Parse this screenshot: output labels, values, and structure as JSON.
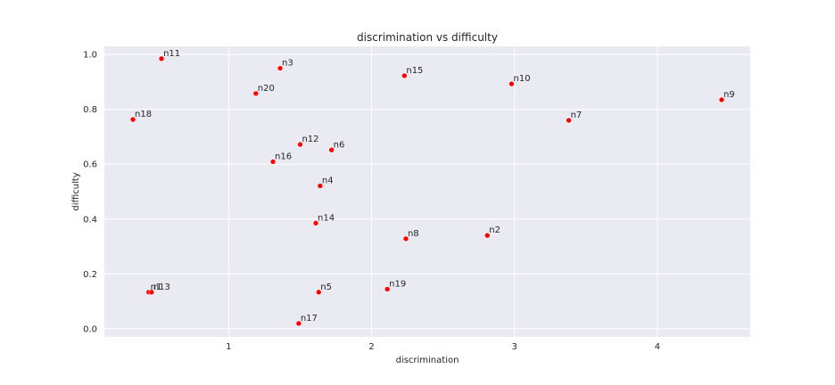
{
  "chart_data": {
    "type": "scatter",
    "title": "discrimination vs difficulty",
    "xlabel": "discrimination",
    "ylabel": "difficulty",
    "xlim": [
      0.13,
      4.65
    ],
    "ylim": [
      -0.03,
      1.03
    ],
    "xticks": [
      1,
      2,
      3,
      4
    ],
    "yticks": [
      0.0,
      0.2,
      0.4,
      0.6,
      0.8,
      1.0
    ],
    "xtick_labels": [
      "1",
      "2",
      "3",
      "4"
    ],
    "ytick_labels": [
      "0.0",
      "0.2",
      "0.4",
      "0.6",
      "0.8",
      "1.0"
    ],
    "grid": true,
    "point_color": "#ff0000",
    "background_color": "#eaeaf2",
    "grid_color": "#ffffff",
    "points": [
      {
        "label": "n1",
        "x": 0.44,
        "y": 0.133
      },
      {
        "label": "n2",
        "x": 2.81,
        "y": 0.34
      },
      {
        "label": "n3",
        "x": 1.36,
        "y": 0.95
      },
      {
        "label": "n4",
        "x": 1.64,
        "y": 0.521
      },
      {
        "label": "n5",
        "x": 1.63,
        "y": 0.133
      },
      {
        "label": "n6",
        "x": 1.72,
        "y": 0.652
      },
      {
        "label": "n7",
        "x": 3.38,
        "y": 0.76
      },
      {
        "label": "n8",
        "x": 2.24,
        "y": 0.328
      },
      {
        "label": "n9",
        "x": 4.45,
        "y": 0.835
      },
      {
        "label": "n10",
        "x": 2.98,
        "y": 0.893
      },
      {
        "label": "n11",
        "x": 0.53,
        "y": 0.985
      },
      {
        "label": "n12",
        "x": 1.5,
        "y": 0.672
      },
      {
        "label": "n13",
        "x": 0.46,
        "y": 0.133
      },
      {
        "label": "n14",
        "x": 1.61,
        "y": 0.385
      },
      {
        "label": "n15",
        "x": 2.23,
        "y": 0.923
      },
      {
        "label": "n16",
        "x": 1.31,
        "y": 0.609
      },
      {
        "label": "n17",
        "x": 1.49,
        "y": 0.019
      },
      {
        "label": "n18",
        "x": 0.33,
        "y": 0.763
      },
      {
        "label": "n19",
        "x": 2.11,
        "y": 0.144
      },
      {
        "label": "n20",
        "x": 1.19,
        "y": 0.858
      }
    ]
  }
}
